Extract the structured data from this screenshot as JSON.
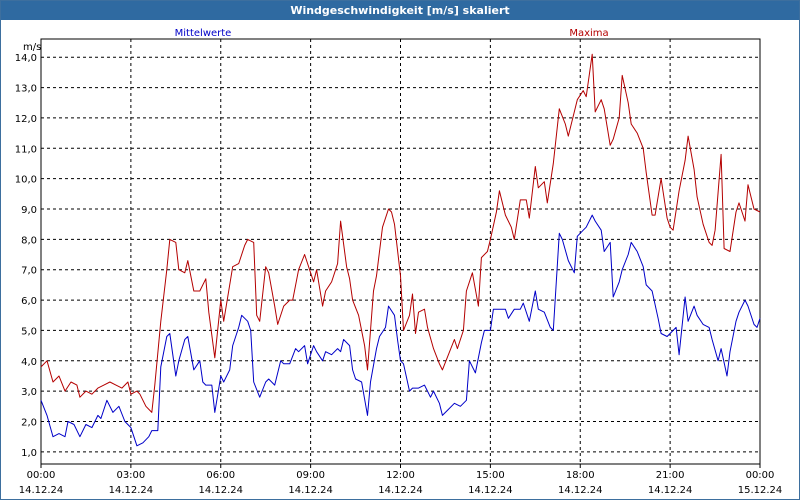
{
  "window": {
    "title": "Windgeschwindigkeit [m/s] skaliert"
  },
  "chart_data": {
    "type": "line",
    "title": "Windgeschwindigkeit [m/s] skaliert",
    "ylabel": "m/s",
    "ylim": [
      0.6,
      14.6
    ],
    "yticks": [
      1.0,
      2.0,
      3.0,
      4.0,
      5.0,
      6.0,
      7.0,
      8.0,
      9.0,
      10.0,
      11.0,
      12.0,
      13.0,
      14.0
    ],
    "ytick_labels": [
      "1,0",
      "2,0",
      "3,0",
      "4,0",
      "5,0",
      "6,0",
      "7,0",
      "8,0",
      "9,0",
      "10,0",
      "11,0",
      "12,0",
      "13,0",
      "14,0"
    ],
    "xlim": [
      0,
      24
    ],
    "xticks": [
      {
        "time": "00:00",
        "date": "14.12.24"
      },
      {
        "time": "03:00",
        "date": "14.12.24"
      },
      {
        "time": "06:00",
        "date": "14.12.24"
      },
      {
        "time": "09:00",
        "date": "14.12.24"
      },
      {
        "time": "12:00",
        "date": "14.12.24"
      },
      {
        "time": "15:00",
        "date": "14.12.24"
      },
      {
        "time": "18:00",
        "date": "14.12.24"
      },
      {
        "time": "21:00",
        "date": "14.12.24"
      },
      {
        "time": "00:00",
        "date": "15.12.24"
      }
    ],
    "grid": true,
    "series": [
      {
        "name": "Mittelwerte",
        "color": "#0000c8",
        "points": [
          [
            0,
            2.7
          ],
          [
            0.2,
            2.2
          ],
          [
            0.4,
            1.5
          ],
          [
            0.6,
            1.6
          ],
          [
            0.8,
            1.5
          ],
          [
            0.9,
            2.0
          ],
          [
            1.1,
            1.9
          ],
          [
            1.3,
            1.5
          ],
          [
            1.5,
            1.9
          ],
          [
            1.7,
            1.8
          ],
          [
            1.9,
            2.2
          ],
          [
            2.0,
            2.1
          ],
          [
            2.2,
            2.7
          ],
          [
            2.4,
            2.3
          ],
          [
            2.6,
            2.5
          ],
          [
            2.8,
            2.0
          ],
          [
            3.0,
            1.8
          ],
          [
            3.1,
            1.5
          ],
          [
            3.2,
            1.2
          ],
          [
            3.4,
            1.3
          ],
          [
            3.6,
            1.5
          ],
          [
            3.7,
            1.7
          ],
          [
            3.9,
            1.7
          ],
          [
            4.0,
            3.8
          ],
          [
            4.2,
            4.8
          ],
          [
            4.3,
            4.9
          ],
          [
            4.5,
            3.5
          ],
          [
            4.6,
            4.0
          ],
          [
            4.8,
            4.7
          ],
          [
            4.9,
            4.8
          ],
          [
            5.1,
            3.7
          ],
          [
            5.3,
            4.0
          ],
          [
            5.4,
            3.3
          ],
          [
            5.5,
            3.2
          ],
          [
            5.7,
            3.2
          ],
          [
            5.8,
            2.3
          ],
          [
            6.0,
            3.5
          ],
          [
            6.1,
            3.3
          ],
          [
            6.3,
            3.7
          ],
          [
            6.4,
            4.5
          ],
          [
            6.6,
            5.1
          ],
          [
            6.7,
            5.5
          ],
          [
            6.9,
            5.3
          ],
          [
            7.0,
            5.0
          ],
          [
            7.1,
            3.3
          ],
          [
            7.3,
            2.8
          ],
          [
            7.5,
            3.3
          ],
          [
            7.6,
            3.4
          ],
          [
            7.8,
            3.2
          ],
          [
            8.0,
            4.0
          ],
          [
            8.1,
            3.9
          ],
          [
            8.3,
            3.9
          ],
          [
            8.5,
            4.4
          ],
          [
            8.6,
            4.3
          ],
          [
            8.8,
            4.5
          ],
          [
            8.9,
            3.9
          ],
          [
            9.1,
            4.5
          ],
          [
            9.2,
            4.3
          ],
          [
            9.4,
            4.0
          ],
          [
            9.5,
            4.3
          ],
          [
            9.7,
            4.2
          ],
          [
            9.9,
            4.4
          ],
          [
            10.0,
            4.3
          ],
          [
            10.1,
            4.7
          ],
          [
            10.3,
            4.5
          ],
          [
            10.4,
            3.7
          ],
          [
            10.5,
            3.4
          ],
          [
            10.7,
            3.3
          ],
          [
            10.9,
            2.2
          ],
          [
            11.0,
            3.3
          ],
          [
            11.2,
            4.4
          ],
          [
            11.3,
            4.8
          ],
          [
            11.5,
            5.1
          ],
          [
            11.6,
            5.8
          ],
          [
            11.8,
            5.5
          ],
          [
            11.9,
            4.7
          ],
          [
            12.0,
            4.0
          ],
          [
            12.1,
            3.9
          ],
          [
            12.3,
            3.0
          ],
          [
            12.4,
            3.1
          ],
          [
            12.6,
            3.1
          ],
          [
            12.8,
            3.2
          ],
          [
            13.0,
            2.8
          ],
          [
            13.1,
            3.0
          ],
          [
            13.3,
            2.6
          ],
          [
            13.4,
            2.2
          ],
          [
            13.6,
            2.4
          ],
          [
            13.8,
            2.6
          ],
          [
            14.0,
            2.5
          ],
          [
            14.2,
            2.7
          ],
          [
            14.3,
            4.0
          ],
          [
            14.5,
            3.6
          ],
          [
            14.7,
            4.6
          ],
          [
            14.8,
            5.0
          ],
          [
            15.0,
            5.0
          ],
          [
            15.1,
            5.7
          ],
          [
            15.3,
            5.7
          ],
          [
            15.5,
            5.7
          ],
          [
            15.6,
            5.4
          ],
          [
            15.8,
            5.7
          ],
          [
            16.0,
            5.7
          ],
          [
            16.1,
            5.9
          ],
          [
            16.3,
            5.3
          ],
          [
            16.5,
            6.3
          ],
          [
            16.6,
            5.7
          ],
          [
            16.8,
            5.6
          ],
          [
            17.0,
            5.1
          ],
          [
            17.1,
            5.0
          ],
          [
            17.3,
            8.2
          ],
          [
            17.4,
            8.0
          ],
          [
            17.6,
            7.3
          ],
          [
            17.8,
            6.9
          ],
          [
            17.9,
            8.1
          ],
          [
            18.1,
            8.3
          ],
          [
            18.2,
            8.4
          ],
          [
            18.4,
            8.8
          ],
          [
            18.5,
            8.6
          ],
          [
            18.7,
            8.3
          ],
          [
            18.8,
            7.6
          ],
          [
            19.0,
            7.9
          ],
          [
            19.1,
            6.1
          ],
          [
            19.3,
            6.6
          ],
          [
            19.4,
            7.0
          ],
          [
            19.6,
            7.5
          ],
          [
            19.7,
            7.9
          ],
          [
            19.9,
            7.6
          ],
          [
            20.1,
            7.1
          ],
          [
            20.2,
            6.5
          ],
          [
            20.4,
            6.3
          ],
          [
            20.6,
            5.4
          ],
          [
            20.7,
            4.9
          ],
          [
            20.9,
            4.8
          ],
          [
            21.0,
            4.9
          ],
          [
            21.2,
            5.1
          ],
          [
            21.3,
            4.2
          ],
          [
            21.5,
            6.1
          ],
          [
            21.6,
            5.3
          ],
          [
            21.8,
            5.8
          ],
          [
            21.9,
            5.5
          ],
          [
            22.1,
            5.2
          ],
          [
            22.3,
            5.1
          ],
          [
            22.4,
            4.7
          ],
          [
            22.6,
            4.0
          ],
          [
            22.7,
            4.4
          ],
          [
            22.9,
            3.5
          ],
          [
            23.0,
            4.3
          ],
          [
            23.2,
            5.3
          ],
          [
            23.3,
            5.6
          ],
          [
            23.5,
            6.0
          ],
          [
            23.6,
            5.8
          ],
          [
            23.8,
            5.2
          ],
          [
            23.9,
            5.1
          ],
          [
            24.0,
            5.4
          ]
        ]
      },
      {
        "name": "Maxima",
        "color": "#b40000",
        "points": [
          [
            0,
            3.8
          ],
          [
            0.2,
            4.0
          ],
          [
            0.4,
            3.3
          ],
          [
            0.6,
            3.5
          ],
          [
            0.8,
            3.0
          ],
          [
            1.0,
            3.3
          ],
          [
            1.2,
            3.2
          ],
          [
            1.3,
            2.8
          ],
          [
            1.5,
            3.0
          ],
          [
            1.7,
            2.9
          ],
          [
            1.9,
            3.1
          ],
          [
            2.1,
            3.2
          ],
          [
            2.3,
            3.3
          ],
          [
            2.5,
            3.2
          ],
          [
            2.7,
            3.1
          ],
          [
            2.9,
            3.3
          ],
          [
            3.0,
            2.9
          ],
          [
            3.2,
            3.0
          ],
          [
            3.3,
            2.9
          ],
          [
            3.5,
            2.5
          ],
          [
            3.7,
            2.3
          ],
          [
            3.8,
            3.2
          ],
          [
            4.0,
            5.3
          ],
          [
            4.2,
            7.0
          ],
          [
            4.3,
            8.0
          ],
          [
            4.5,
            7.9
          ],
          [
            4.6,
            7.0
          ],
          [
            4.8,
            6.9
          ],
          [
            4.9,
            7.3
          ],
          [
            5.1,
            6.3
          ],
          [
            5.3,
            6.3
          ],
          [
            5.5,
            6.7
          ],
          [
            5.6,
            5.6
          ],
          [
            5.8,
            4.1
          ],
          [
            6.0,
            6.0
          ],
          [
            6.1,
            5.3
          ],
          [
            6.3,
            6.5
          ],
          [
            6.4,
            7.1
          ],
          [
            6.6,
            7.2
          ],
          [
            6.8,
            7.8
          ],
          [
            6.9,
            8.0
          ],
          [
            7.1,
            7.9
          ],
          [
            7.2,
            5.5
          ],
          [
            7.3,
            5.3
          ],
          [
            7.5,
            7.1
          ],
          [
            7.6,
            6.9
          ],
          [
            7.8,
            5.8
          ],
          [
            7.9,
            5.2
          ],
          [
            8.1,
            5.8
          ],
          [
            8.3,
            6.0
          ],
          [
            8.4,
            6.0
          ],
          [
            8.6,
            7.0
          ],
          [
            8.8,
            7.5
          ],
          [
            8.9,
            7.2
          ],
          [
            9.1,
            6.6
          ],
          [
            9.2,
            7.0
          ],
          [
            9.4,
            5.8
          ],
          [
            9.5,
            6.3
          ],
          [
            9.7,
            6.6
          ],
          [
            9.9,
            7.2
          ],
          [
            10.0,
            8.6
          ],
          [
            10.2,
            7.1
          ],
          [
            10.3,
            6.7
          ],
          [
            10.4,
            6.0
          ],
          [
            10.6,
            5.5
          ],
          [
            10.8,
            4.5
          ],
          [
            10.9,
            3.7
          ],
          [
            11.1,
            6.3
          ],
          [
            11.2,
            6.8
          ],
          [
            11.4,
            8.4
          ],
          [
            11.6,
            9.0
          ],
          [
            11.7,
            8.9
          ],
          [
            11.8,
            8.5
          ],
          [
            12.0,
            6.8
          ],
          [
            12.1,
            5.0
          ],
          [
            12.3,
            5.5
          ],
          [
            12.4,
            6.2
          ],
          [
            12.5,
            4.9
          ],
          [
            12.6,
            5.6
          ],
          [
            12.8,
            5.7
          ],
          [
            12.9,
            5.1
          ],
          [
            13.1,
            4.4
          ],
          [
            13.3,
            3.9
          ],
          [
            13.4,
            3.7
          ],
          [
            13.6,
            4.2
          ],
          [
            13.8,
            4.7
          ],
          [
            13.9,
            4.4
          ],
          [
            14.1,
            5.0
          ],
          [
            14.2,
            6.3
          ],
          [
            14.4,
            6.9
          ],
          [
            14.6,
            5.8
          ],
          [
            14.7,
            7.4
          ],
          [
            14.9,
            7.6
          ],
          [
            15.0,
            8.0
          ],
          [
            15.2,
            8.9
          ],
          [
            15.3,
            9.6
          ],
          [
            15.5,
            8.8
          ],
          [
            15.7,
            8.4
          ],
          [
            15.8,
            8.0
          ],
          [
            16.0,
            9.3
          ],
          [
            16.2,
            9.3
          ],
          [
            16.3,
            8.7
          ],
          [
            16.5,
            10.4
          ],
          [
            16.6,
            9.7
          ],
          [
            16.8,
            9.9
          ],
          [
            16.9,
            9.2
          ],
          [
            17.1,
            10.5
          ],
          [
            17.3,
            12.3
          ],
          [
            17.5,
            11.8
          ],
          [
            17.6,
            11.4
          ],
          [
            17.8,
            12.2
          ],
          [
            17.9,
            12.6
          ],
          [
            18.1,
            12.9
          ],
          [
            18.2,
            12.7
          ],
          [
            18.4,
            14.1
          ],
          [
            18.5,
            12.2
          ],
          [
            18.7,
            12.6
          ],
          [
            18.8,
            12.3
          ],
          [
            19.0,
            11.1
          ],
          [
            19.1,
            11.3
          ],
          [
            19.3,
            12.0
          ],
          [
            19.4,
            13.4
          ],
          [
            19.6,
            12.5
          ],
          [
            19.7,
            11.8
          ],
          [
            19.9,
            11.5
          ],
          [
            20.1,
            11.0
          ],
          [
            20.2,
            10.2
          ],
          [
            20.4,
            8.8
          ],
          [
            20.5,
            8.8
          ],
          [
            20.7,
            10.0
          ],
          [
            20.9,
            8.7
          ],
          [
            21.0,
            8.4
          ],
          [
            21.1,
            8.3
          ],
          [
            21.3,
            9.6
          ],
          [
            21.5,
            10.6
          ],
          [
            21.6,
            11.4
          ],
          [
            21.8,
            10.3
          ],
          [
            21.9,
            9.4
          ],
          [
            22.1,
            8.5
          ],
          [
            22.3,
            7.9
          ],
          [
            22.4,
            7.8
          ],
          [
            22.5,
            8.3
          ],
          [
            22.7,
            10.8
          ],
          [
            22.8,
            7.7
          ],
          [
            23.0,
            7.6
          ],
          [
            23.2,
            8.9
          ],
          [
            23.3,
            9.2
          ],
          [
            23.5,
            8.6
          ],
          [
            23.6,
            9.8
          ],
          [
            23.8,
            9.0
          ],
          [
            24.0,
            8.9
          ]
        ]
      }
    ]
  }
}
